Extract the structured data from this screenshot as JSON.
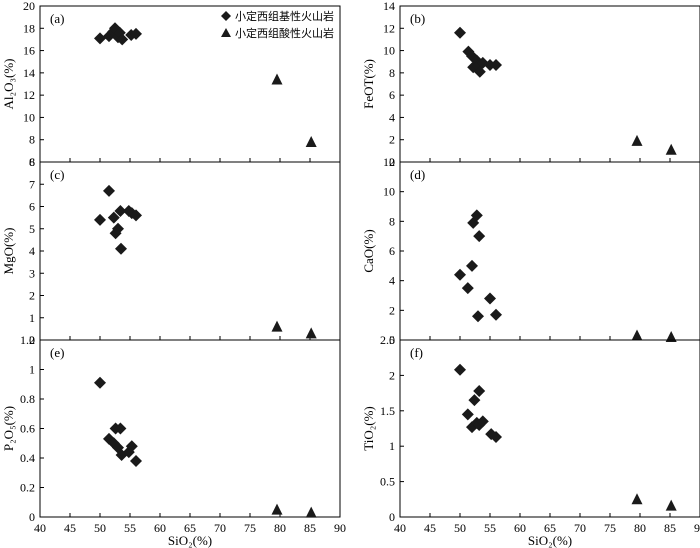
{
  "chart_data": [
    {
      "type": "scatter",
      "panel": "(a)",
      "ylabel": "Al₂O₃(%)",
      "xlabel": "",
      "xlim": [
        40,
        90
      ],
      "ylim": [
        6,
        20
      ],
      "x_ticks": [
        40,
        45,
        50,
        55,
        60,
        65,
        70,
        75,
        80,
        85,
        90
      ],
      "y_ticks": [
        6,
        8,
        10,
        12,
        14,
        16,
        18,
        20
      ],
      "legend": [
        {
          "marker": "diamond",
          "label": "小定西组基性火山岩"
        },
        {
          "marker": "triangle",
          "label": "小定西组酸性火山岩"
        }
      ],
      "series": [
        {
          "name": "小定西组基性火山岩",
          "marker": "diamond",
          "points": [
            [
              50.0,
              17.1
            ],
            [
              51.5,
              17.3
            ],
            [
              52.2,
              17.7
            ],
            [
              52.5,
              18.0
            ],
            [
              52.8,
              17.8
            ],
            [
              53.0,
              17.2
            ],
            [
              53.3,
              17.6
            ],
            [
              53.7,
              17.0
            ],
            [
              55.2,
              17.4
            ],
            [
              56.0,
              17.5
            ]
          ]
        },
        {
          "name": "小定西组酸性火山岩",
          "marker": "triangle",
          "points": [
            [
              79.5,
              13.4
            ],
            [
              85.2,
              7.8
            ]
          ]
        }
      ]
    },
    {
      "type": "scatter",
      "panel": "(b)",
      "ylabel": "FeOT(%)",
      "xlabel": "",
      "xlim": [
        40,
        90
      ],
      "ylim": [
        0,
        14
      ],
      "x_ticks": [
        40,
        45,
        50,
        55,
        60,
        65,
        70,
        75,
        80,
        85,
        90
      ],
      "y_ticks": [
        0,
        2,
        4,
        6,
        8,
        10,
        12,
        14
      ],
      "series": [
        {
          "name": "小定西组基性火山岩",
          "marker": "diamond",
          "points": [
            [
              50.0,
              11.6
            ],
            [
              51.4,
              9.9
            ],
            [
              52.0,
              9.5
            ],
            [
              52.2,
              8.5
            ],
            [
              52.8,
              9.1
            ],
            [
              53.0,
              8.6
            ],
            [
              53.3,
              8.1
            ],
            [
              53.8,
              8.9
            ],
            [
              55.0,
              8.7
            ],
            [
              56.0,
              8.7
            ]
          ]
        },
        {
          "name": "小定西组酸性火山岩",
          "marker": "triangle",
          "points": [
            [
              79.5,
              1.9
            ],
            [
              85.2,
              1.1
            ]
          ]
        }
      ]
    },
    {
      "type": "scatter",
      "panel": "(c)",
      "ylabel": "MgO(%)",
      "xlabel": "",
      "xlim": [
        40,
        90
      ],
      "ylim": [
        0,
        8
      ],
      "x_ticks": [
        40,
        45,
        50,
        55,
        60,
        65,
        70,
        75,
        80,
        85,
        90
      ],
      "y_ticks": [
        0,
        1,
        2,
        3,
        4,
        5,
        6,
        7,
        8
      ],
      "series": [
        {
          "name": "小定西组基性火山岩",
          "marker": "diamond",
          "points": [
            [
              50.0,
              5.4
            ],
            [
              51.5,
              6.7
            ],
            [
              52.3,
              5.5
            ],
            [
              52.6,
              4.8
            ],
            [
              53.0,
              5.0
            ],
            [
              53.4,
              5.8
            ],
            [
              53.5,
              4.1
            ],
            [
              54.8,
              5.8
            ],
            [
              55.3,
              5.7
            ],
            [
              56.0,
              5.6
            ]
          ]
        },
        {
          "name": "小定西组酸性火山岩",
          "marker": "triangle",
          "points": [
            [
              79.5,
              0.6
            ],
            [
              85.2,
              0.3
            ]
          ]
        }
      ]
    },
    {
      "type": "scatter",
      "panel": "(d)",
      "ylabel": "CaO(%)",
      "xlabel": "",
      "xlim": [
        40,
        90
      ],
      "ylim": [
        0,
        12
      ],
      "x_ticks": [
        40,
        45,
        50,
        55,
        60,
        65,
        70,
        75,
        80,
        85,
        90
      ],
      "y_ticks": [
        0,
        2,
        4,
        6,
        8,
        10,
        12
      ],
      "series": [
        {
          "name": "小定西组基性火山岩",
          "marker": "diamond",
          "points": [
            [
              50.0,
              4.4
            ],
            [
              51.3,
              3.5
            ],
            [
              52.0,
              5.0
            ],
            [
              52.2,
              7.9
            ],
            [
              52.8,
              8.4
            ],
            [
              53.2,
              7.0
            ],
            [
              53.0,
              1.6
            ],
            [
              55.0,
              2.8
            ],
            [
              56.0,
              1.7
            ]
          ]
        },
        {
          "name": "小定西组酸性火山岩",
          "marker": "triangle",
          "points": [
            [
              79.5,
              0.3
            ],
            [
              85.2,
              0.2
            ]
          ]
        }
      ]
    },
    {
      "type": "scatter",
      "panel": "(e)",
      "ylabel": "P₂O₅(%)",
      "xlabel": "SiO₂(%)",
      "xlim": [
        40,
        90
      ],
      "ylim": [
        0,
        1.2
      ],
      "x_ticks": [
        40,
        45,
        50,
        55,
        60,
        65,
        70,
        75,
        80,
        85,
        90
      ],
      "y_ticks": [
        0,
        0.2,
        0.4,
        0.6,
        0.8,
        1,
        1.2
      ],
      "series": [
        {
          "name": "小定西组基性火山岩",
          "marker": "diamond",
          "points": [
            [
              50.0,
              0.91
            ],
            [
              51.5,
              0.53
            ],
            [
              52.3,
              0.5
            ],
            [
              52.6,
              0.6
            ],
            [
              53.0,
              0.47
            ],
            [
              53.4,
              0.6
            ],
            [
              53.6,
              0.42
            ],
            [
              54.8,
              0.44
            ],
            [
              55.3,
              0.48
            ],
            [
              56.0,
              0.38
            ]
          ]
        },
        {
          "name": "小定西组酸性火山岩",
          "marker": "triangle",
          "points": [
            [
              79.5,
              0.05
            ],
            [
              85.2,
              0.03
            ]
          ]
        }
      ]
    },
    {
      "type": "scatter",
      "panel": "(f)",
      "ylabel": "TiO₂(%)",
      "xlabel": "SiO₂(%)",
      "xlim": [
        40,
        90
      ],
      "ylim": [
        0,
        2.5
      ],
      "x_ticks": [
        40,
        45,
        50,
        55,
        60,
        65,
        70,
        75,
        80,
        85,
        90
      ],
      "y_ticks": [
        0,
        0.5,
        1,
        1.5,
        2,
        2.5
      ],
      "series": [
        {
          "name": "小定西组基性火山岩",
          "marker": "diamond",
          "points": [
            [
              50.0,
              2.08
            ],
            [
              51.3,
              1.45
            ],
            [
              52.0,
              1.27
            ],
            [
              52.4,
              1.65
            ],
            [
              52.8,
              1.33
            ],
            [
              53.2,
              1.78
            ],
            [
              53.2,
              1.3
            ],
            [
              53.8,
              1.35
            ],
            [
              55.2,
              1.17
            ],
            [
              56.0,
              1.13
            ]
          ]
        },
        {
          "name": "小定西组酸性火山岩",
          "marker": "triangle",
          "points": [
            [
              79.5,
              0.25
            ],
            [
              85.2,
              0.16
            ]
          ]
        }
      ]
    }
  ]
}
